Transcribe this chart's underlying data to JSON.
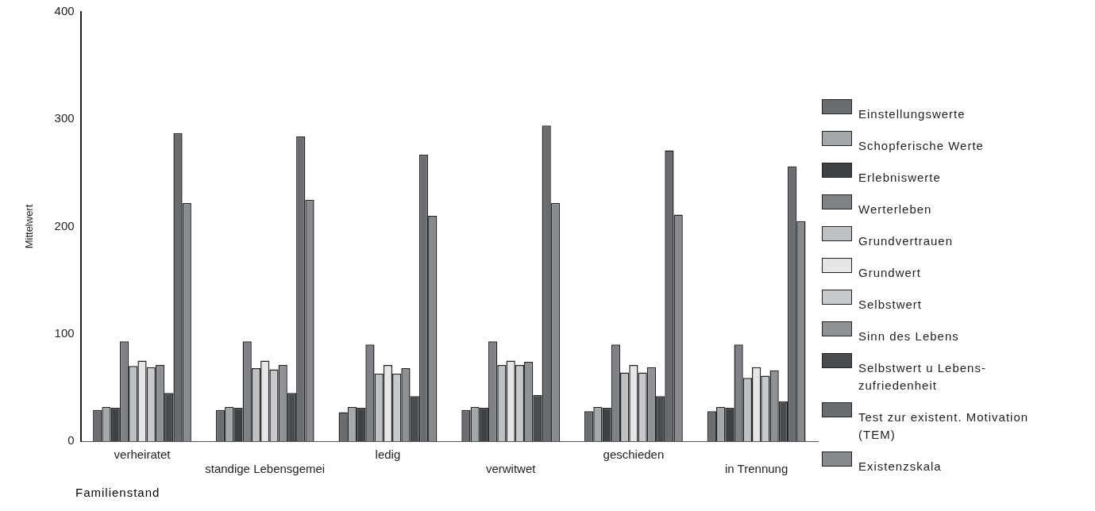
{
  "chart_data": {
    "type": "bar",
    "xlabel": "Familienstand",
    "ylabel": "Mittelwert",
    "categories": [
      "verheiratet",
      "standige Lebensgemei",
      "ledig",
      "verwitwet",
      "geschieden",
      "in Trennung"
    ],
    "ylim": [
      0,
      400
    ],
    "yticks": [
      0,
      100,
      200,
      300,
      400
    ],
    "grid": false,
    "legend": "right",
    "series": [
      {
        "name": "Einstellungswerte",
        "color": "#6b6c70",
        "values": [
          29,
          29,
          27,
          29,
          28,
          28
        ]
      },
      {
        "name": "Schopferische Werte",
        "color": "#a5a8ab",
        "values": [
          32,
          32,
          32,
          32,
          32,
          32
        ]
      },
      {
        "name": "Erlebniswerte",
        "color": "#3f4042",
        "values": [
          31,
          31,
          31,
          31,
          31,
          31
        ]
      },
      {
        "name": "Werterleben",
        "color": "#808184",
        "values": [
          93,
          93,
          90,
          93,
          90,
          90
        ]
      },
      {
        "name": "Grundvertrauen",
        "color": "#bfc0c2",
        "values": [
          70,
          68,
          63,
          71,
          64,
          59
        ]
      },
      {
        "name": "Grundwert",
        "color": "#e6e6e6",
        "values": [
          75,
          75,
          71,
          75,
          71,
          69
        ]
      },
      {
        "name": "Selbstwert",
        "color": "#c8c9cc",
        "values": [
          69,
          67,
          63,
          71,
          64,
          61
        ]
      },
      {
        "name": "Sinn des Lebens",
        "color": "#909194",
        "values": [
          71,
          71,
          68,
          74,
          69,
          66
        ]
      },
      {
        "name": "Selbstwert u Lebens-zufriedenheit",
        "color": "#4a4b4d",
        "values": [
          45,
          45,
          42,
          43,
          42,
          37
        ]
      },
      {
        "name": "Test zur existent. Motivation (TEM)",
        "color": "#6b6c70",
        "values": [
          287,
          284,
          267,
          294,
          271,
          256
        ]
      },
      {
        "name": "Existenzskala",
        "color": "#898a8e",
        "values": [
          222,
          225,
          210,
          222,
          211,
          205
        ]
      }
    ]
  }
}
